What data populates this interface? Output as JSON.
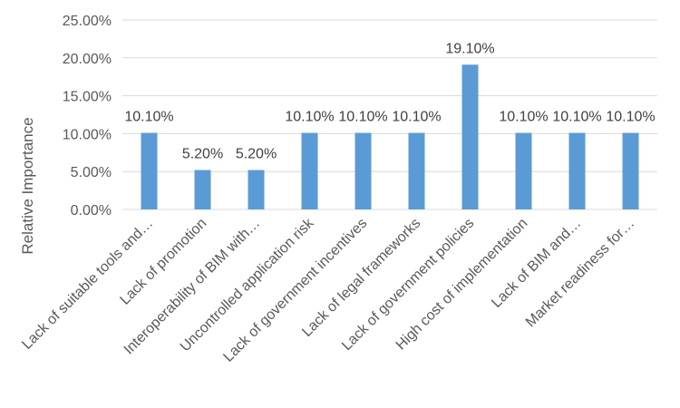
{
  "chart_data": {
    "type": "bar",
    "ylabel": "Relative Importance",
    "xlabel": "",
    "title": "",
    "ylim": [
      0,
      25
    ],
    "y_ticks": [
      "0.00%",
      "5.00%",
      "10.00%",
      "15.00%",
      "20.00%",
      "25.00%"
    ],
    "grid": true,
    "legend": "none",
    "bar_color": "#5B9BD5",
    "grid_color": "#D9D9D9",
    "categories": [
      "Lack of suitable tools and…",
      "Lack of promotion",
      "Interoperability of BIM with…",
      "Uncontrolled application risk",
      "Lack of government incentives",
      "Lack of legal frameworks",
      "Lack of government policies",
      "High cost of implementation",
      "Lack of BIM and…",
      "Market readiness for…"
    ],
    "values": [
      10.1,
      5.2,
      5.2,
      10.1,
      10.1,
      10.1,
      19.1,
      10.1,
      10.1,
      10.1
    ],
    "data_labels": [
      "10.10%",
      "5.20%",
      "5.20%",
      "10.10%",
      "10.10%",
      "10.10%",
      "19.10%",
      "10.10%",
      "10.10%",
      "10.10%"
    ]
  }
}
